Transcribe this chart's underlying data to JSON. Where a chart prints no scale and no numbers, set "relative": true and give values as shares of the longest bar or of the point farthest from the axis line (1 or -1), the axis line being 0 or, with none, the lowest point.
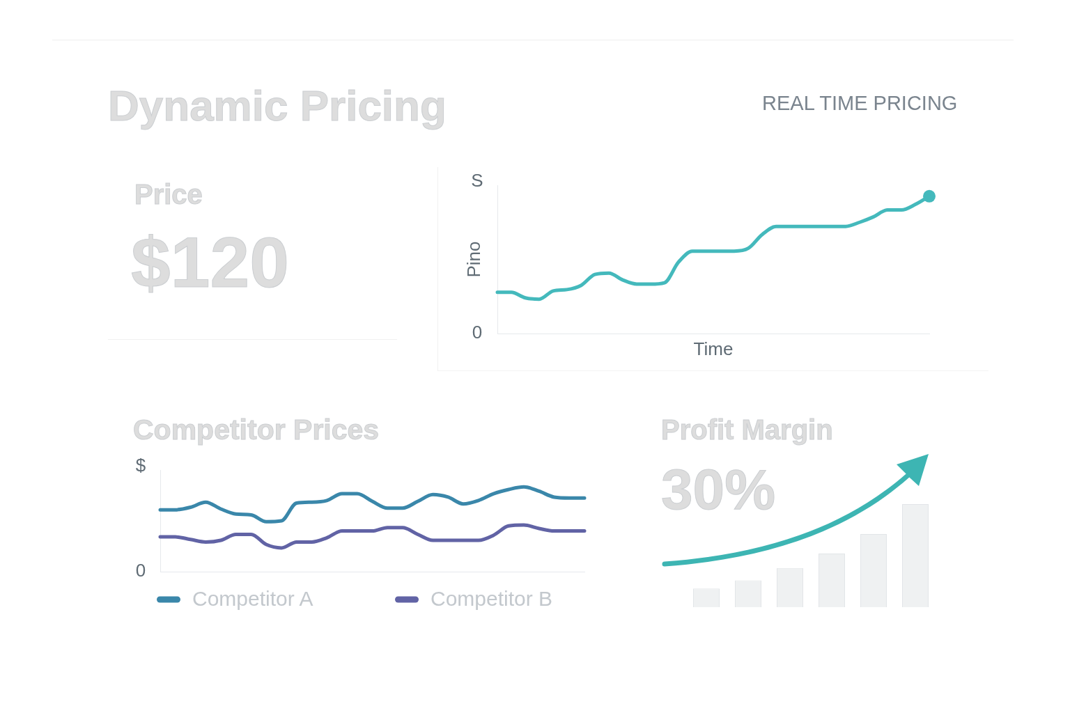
{
  "chart_data": [
    {
      "type": "other",
      "title": "Dynamic Pricing",
      "subtitle": "REAL TIME PRICING"
    },
    {
      "type": "other",
      "title": "Price",
      "annotations": [
        "$120"
      ]
    },
    {
      "type": "line",
      "ylabel": "Pino",
      "xlabel": "Time",
      "relative": true,
      "annotations": [
        "S",
        "0"
      ],
      "categories": [
        null,
        null,
        null,
        null,
        null,
        null,
        null,
        null,
        null,
        null,
        null,
        null,
        null,
        null,
        null,
        null,
        null,
        null,
        null,
        null,
        null,
        null,
        null,
        null,
        null,
        null,
        null,
        null,
        null,
        null,
        null,
        null
      ],
      "series": [
        {
          "color": "#44b9bc",
          "values": [
            0.3,
            0.3,
            0.26,
            0.25,
            0.31,
            0.32,
            0.35,
            0.43,
            0.44,
            0.39,
            0.36,
            0.36,
            0.37,
            0.52,
            0.6,
            0.6,
            0.6,
            0.6,
            0.62,
            0.72,
            0.78,
            0.78,
            0.78,
            0.78,
            0.78,
            0.78,
            0.81,
            0.85,
            0.9,
            0.9,
            0.94,
            1
          ]
        },
        {
          "marker": "circle",
          "color": "#44b9bc",
          "values": [
            null,
            null,
            null,
            null,
            null,
            null,
            null,
            null,
            null,
            null,
            null,
            null,
            null,
            null,
            null,
            null,
            null,
            null,
            null,
            null,
            null,
            null,
            null,
            null,
            null,
            null,
            null,
            null,
            null,
            null,
            null,
            1
          ]
        }
      ]
    },
    {
      "type": "line",
      "title": "Competitor Prices",
      "relative": true,
      "legend": "bottom",
      "annotations": [
        "$",
        "0"
      ],
      "categories": [
        null,
        null,
        null,
        null,
        null,
        null,
        null,
        null,
        null,
        null,
        null,
        null,
        null,
        null,
        null,
        null,
        null,
        null,
        null,
        null,
        null,
        null,
        null,
        null,
        null,
        null,
        null,
        null,
        null
      ],
      "series": [
        {
          "name": "Competitor A",
          "color": "#3a87aa",
          "values": [
            0.73,
            0.73,
            0.76,
            0.82,
            0.74,
            0.68,
            0.67,
            0.59,
            0.6,
            0.81,
            0.82,
            0.84,
            0.92,
            0.92,
            0.83,
            0.75,
            0.75,
            0.83,
            0.91,
            0.88,
            0.8,
            0.84,
            0.92,
            0.97,
            1,
            0.95,
            0.88,
            0.87,
            0.87
          ]
        },
        {
          "name": "Competitor B",
          "color": "#6163a5",
          "values": [
            0.41,
            0.41,
            0.38,
            0.35,
            0.37,
            0.44,
            0.44,
            0.32,
            0.28,
            0.35,
            0.35,
            0.4,
            0.48,
            0.48,
            0.48,
            0.52,
            0.52,
            0.44,
            0.37,
            0.37,
            0.37,
            0.37,
            0.43,
            0.54,
            0.55,
            0.51,
            0.48,
            0.48,
            0.48
          ]
        }
      ]
    },
    {
      "type": "bar",
      "title": "Profit Margin",
      "annotations": [
        "30%"
      ],
      "relative": true,
      "categories": [
        null,
        null,
        null,
        null,
        null,
        null
      ],
      "values": [
        0.18,
        0.26,
        0.38,
        0.52,
        0.71,
        1
      ],
      "color": "#eff1f2"
    }
  ]
}
